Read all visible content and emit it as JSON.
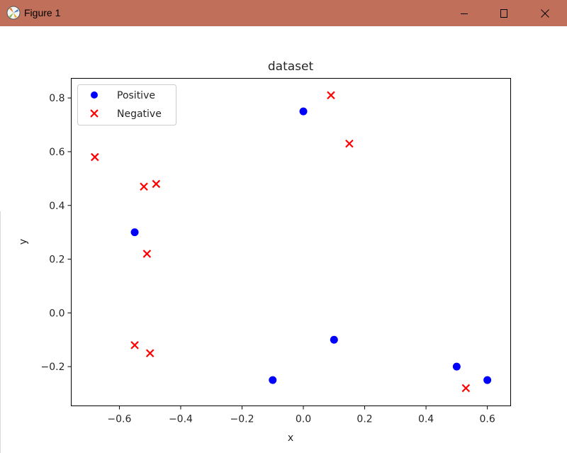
{
  "window": {
    "title": "Figure 1",
    "controls": {
      "minimize": "minimize-icon",
      "maximize": "maximize-icon",
      "close": "close-icon"
    },
    "titlebar_color": "#c0705a"
  },
  "chart_data": {
    "type": "scatter",
    "title": "dataset",
    "xlabel": "x",
    "ylabel": "y",
    "xlim": [
      -0.757,
      0.676
    ],
    "ylim": [
      -0.346,
      0.873
    ],
    "xticks": [
      -0.6,
      -0.4,
      -0.2,
      0.0,
      0.2,
      0.4,
      0.6
    ],
    "xtick_labels": [
      "−0.6",
      "−0.4",
      "−0.2",
      "0.0",
      "0.2",
      "0.4",
      "0.6"
    ],
    "yticks": [
      -0.2,
      0.0,
      0.2,
      0.4,
      0.6,
      0.8
    ],
    "ytick_labels": [
      "−0.2",
      "0.0",
      "0.2",
      "0.4",
      "0.6",
      "0.8"
    ],
    "grid": false,
    "legend_position": "upper left",
    "series": [
      {
        "name": "Positive",
        "marker": "o",
        "color": "#0000ff",
        "points": [
          [
            0.0,
            0.75
          ],
          [
            -0.55,
            0.3
          ],
          [
            -0.1,
            -0.25
          ],
          [
            0.1,
            -0.1
          ],
          [
            0.5,
            -0.2
          ],
          [
            0.6,
            -0.25
          ]
        ]
      },
      {
        "name": "Negative",
        "marker": "x",
        "color": "#ff0000",
        "points": [
          [
            0.09,
            0.81
          ],
          [
            0.15,
            0.63
          ],
          [
            -0.68,
            0.58
          ],
          [
            -0.52,
            0.47
          ],
          [
            -0.48,
            0.48
          ],
          [
            -0.51,
            0.22
          ],
          [
            -0.55,
            -0.12
          ],
          [
            -0.5,
            -0.15
          ],
          [
            0.53,
            -0.28
          ]
        ]
      }
    ]
  }
}
